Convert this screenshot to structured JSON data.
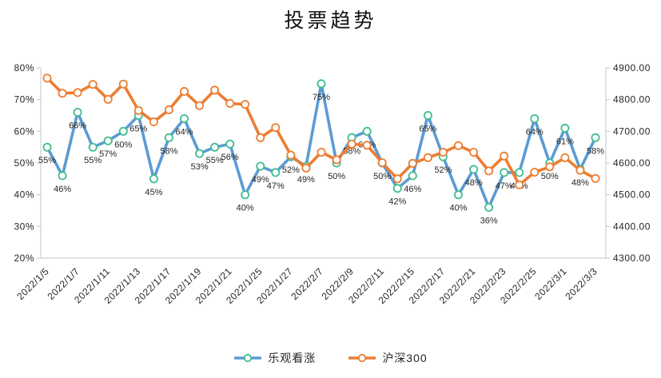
{
  "chart_data": {
    "type": "line",
    "title": "投票趋势",
    "legend_position": "bottom",
    "grid": false,
    "x_tick_labels": [
      "2022/1/5",
      "2022/1/7",
      "2022/1/11",
      "2022/1/13",
      "2022/1/17",
      "2022/1/19",
      "2022/1/21",
      "2022/1/25",
      "2022/1/27",
      "2022/2/7",
      "2022/2/9",
      "2022/2/11",
      "2022/2/15",
      "2022/2/17",
      "2022/2/21",
      "2022/2/23",
      "2022/2/25",
      "2022/3/1",
      "2022/3/3"
    ],
    "x_tick_interval": 2,
    "point_count": 37,
    "yaxis_left": {
      "min": 20,
      "max": 80,
      "step": 10,
      "tick_labels": [
        "80%",
        "70%",
        "60%",
        "50%",
        "40%",
        "30%",
        "20%"
      ]
    },
    "yaxis_right": {
      "min": 4300,
      "max": 4900,
      "step": 100,
      "tick_labels": [
        "4900.00",
        "4800.00",
        "4700.00",
        "4600.00",
        "4500.00",
        "4400.00",
        "4300.00"
      ]
    },
    "series": [
      {
        "name": "乐观看涨",
        "yaxis": "left",
        "color": "#5B9BD5",
        "marker_stroke": "#3EBD8E",
        "show_labels": true,
        "label_suffix": "%",
        "values": [
          55,
          46,
          66,
          55,
          57,
          60,
          65,
          45,
          58,
          64,
          53,
          55,
          56,
          40,
          49,
          47,
          52,
          49,
          75,
          50,
          58,
          60,
          50,
          42,
          46,
          65,
          52,
          40,
          48,
          36,
          47,
          47,
          64,
          50,
          61,
          48,
          58
        ]
      },
      {
        "name": "沪深300",
        "yaxis": "right",
        "color": "#ED7D31",
        "marker_stroke": "#ED7D31",
        "show_labels": false,
        "label_suffix": "",
        "values": [
          4868,
          4820,
          4822,
          4848,
          4801,
          4849,
          4766,
          4730,
          4768,
          4826,
          4781,
          4830,
          4788,
          4785,
          4680,
          4712,
          4625,
          4584,
          4634,
          4610,
          4660,
          4656,
          4601,
          4550,
          4599,
          4617,
          4634,
          4655,
          4634,
          4575,
          4622,
          4531,
          4571,
          4588,
          4617,
          4577,
          4551
        ]
      }
    ]
  }
}
